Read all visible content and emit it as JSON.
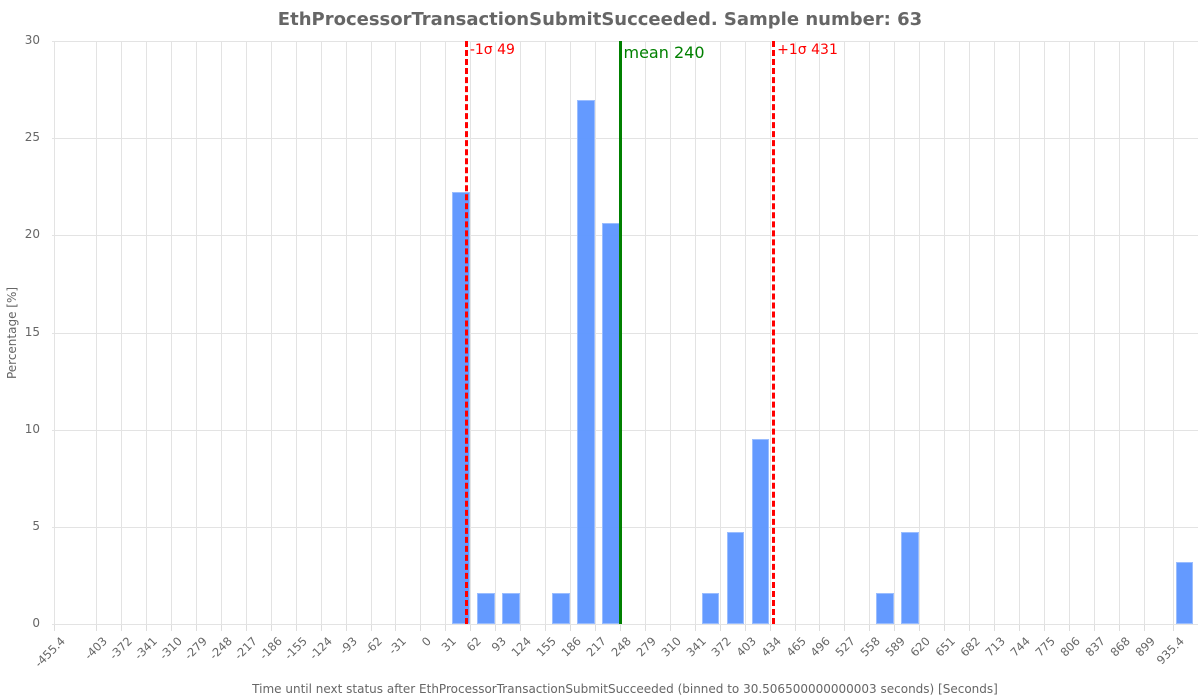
{
  "chart_data": {
    "type": "bar",
    "title": "EthProcessorTransactionSubmitSucceeded. Sample number: 63",
    "xlabel": "Time until next status after EthProcessorTransactionSubmitSucceeded (binned to 30.506500000000003 seconds) [Seconds]",
    "ylabel": "Percentage [%]",
    "ylim": [
      0,
      30
    ],
    "xlim": [
      -455.4,
      935.4
    ],
    "grid": true,
    "bin_width": 30.5065,
    "y_ticks": [
      0,
      5,
      10,
      15,
      20,
      25,
      30
    ],
    "x_ticks": [
      "-455.4",
      "-403",
      "-372",
      "-341",
      "-310",
      "-279",
      "-248",
      "-217",
      "-186",
      "-155",
      "-124",
      "-93",
      "-62",
      "-31",
      "0",
      "31",
      "62",
      "93",
      "124",
      "155",
      "186",
      "217",
      "248",
      "279",
      "310",
      "341",
      "372",
      "403",
      "434",
      "465",
      "496",
      "527",
      "558",
      "589",
      "620",
      "651",
      "682",
      "713",
      "744",
      "775",
      "806",
      "837",
      "868",
      "899",
      "935.4"
    ],
    "categories": [
      "31",
      "62",
      "93",
      "155",
      "186",
      "217",
      "341",
      "372",
      "403",
      "558",
      "589",
      "930"
    ],
    "values": [
      22.22,
      1.59,
      1.59,
      1.59,
      26.98,
      20.63,
      1.59,
      4.76,
      9.52,
      1.59,
      4.76,
      3.17
    ],
    "annotations": [
      {
        "label": "-1σ 49",
        "x": 49,
        "style": "dashed",
        "color": "#ff0000"
      },
      {
        "label": "mean 240",
        "x": 240,
        "style": "solid",
        "color": "#008000"
      },
      {
        "label": "+1σ 431",
        "x": 431,
        "style": "dashed",
        "color": "#ff0000"
      }
    ],
    "bar_color": "#6199ff"
  }
}
